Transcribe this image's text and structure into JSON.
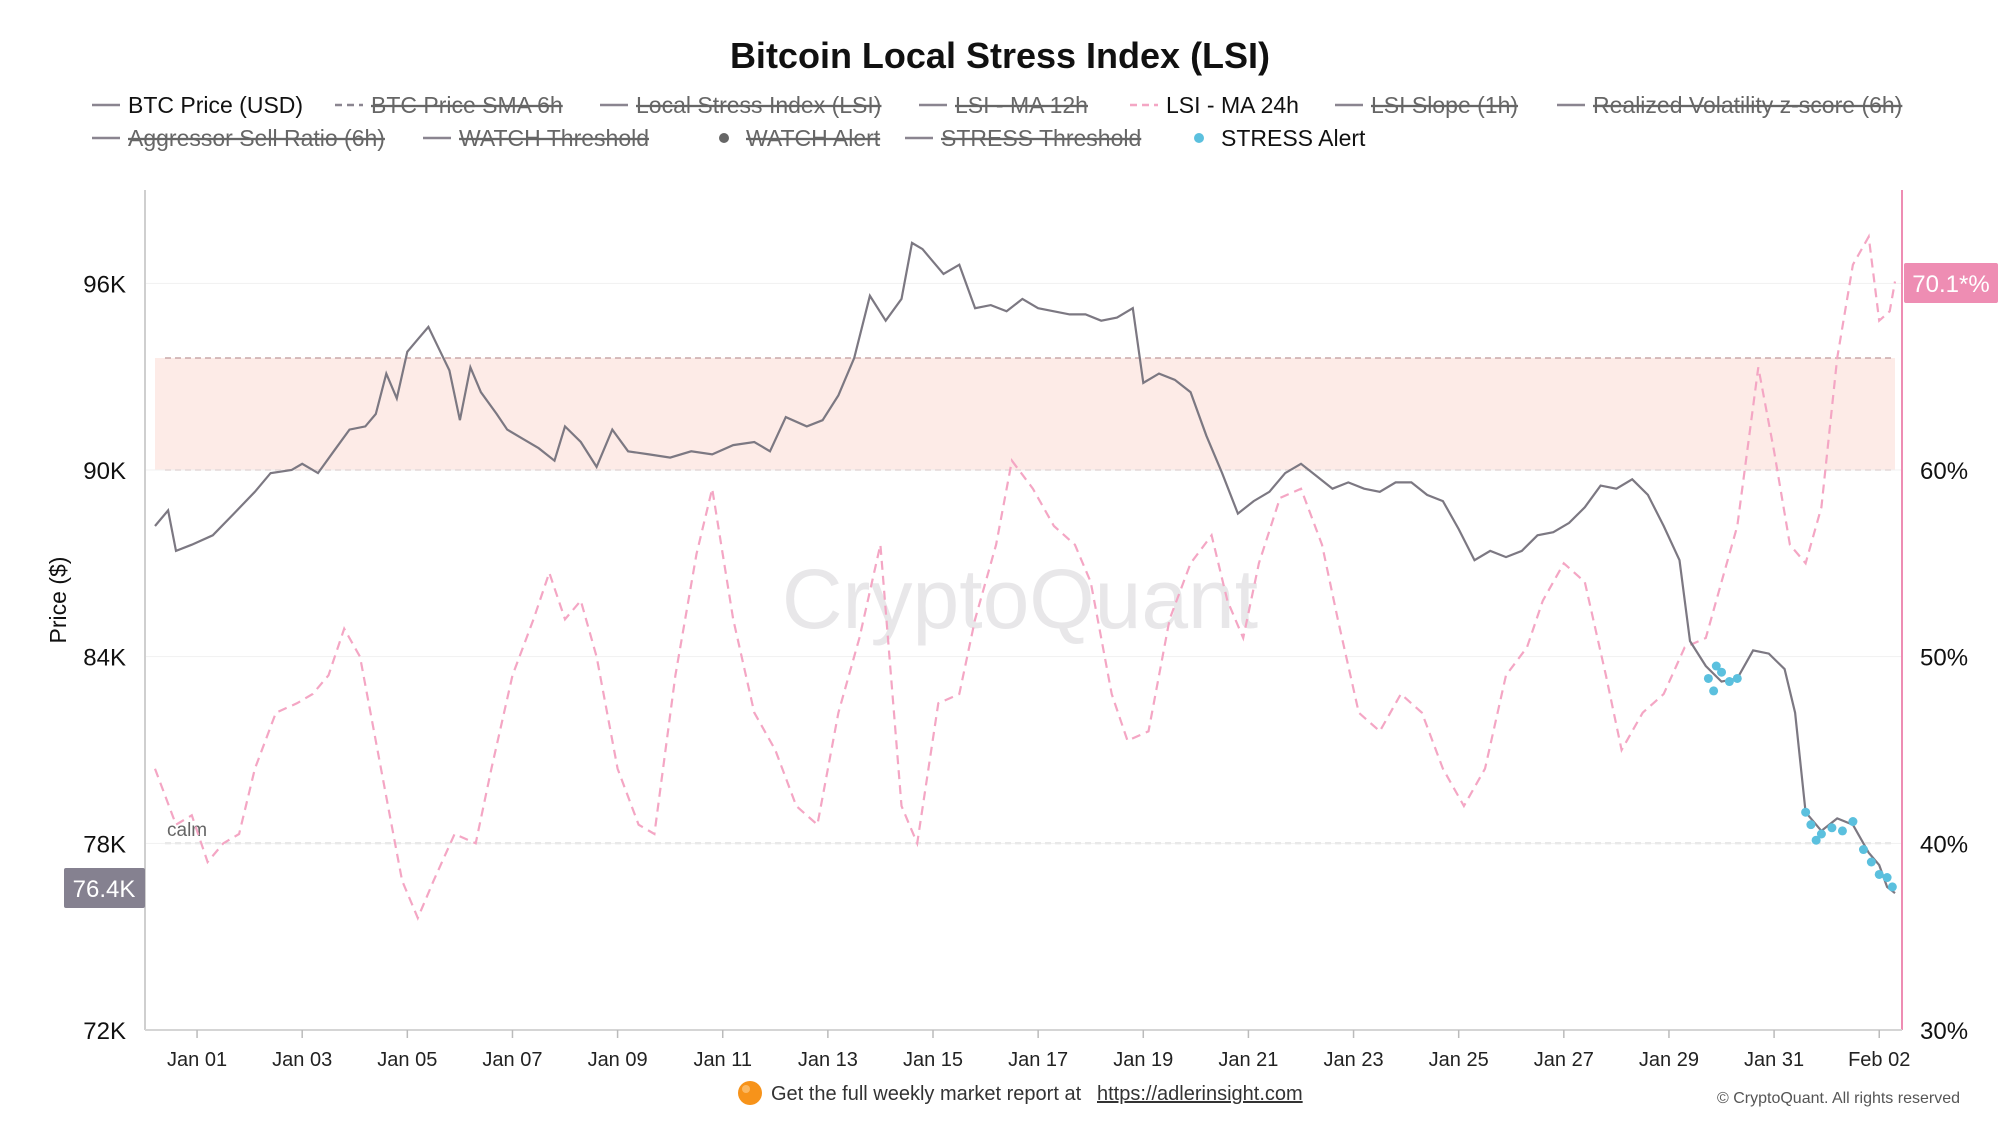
{
  "title": "Bitcoin Local Stress Index (LSI)",
  "legend": [
    {
      "label": "BTC Price (USD)",
      "style": "solid",
      "color": "#8a8590",
      "active": true
    },
    {
      "label": "BTC Price SMA 6h",
      "style": "dashed",
      "color": "#8a8590",
      "active": false
    },
    {
      "label": "Local Stress Index (LSI)",
      "style": "solid",
      "color": "#8a8590",
      "active": false
    },
    {
      "label": "LSI - MA 12h",
      "style": "solid",
      "color": "#8a8590",
      "active": false
    },
    {
      "label": "LSI - MA 24h",
      "style": "dashed",
      "color": "#f4a6c4",
      "active": true
    },
    {
      "label": "LSI Slope (1h)",
      "style": "solid",
      "color": "#8a8590",
      "active": false
    },
    {
      "label": "Realized Volatility z-score (6h)",
      "style": "solid",
      "color": "#8a8590",
      "active": false
    },
    {
      "label": "Aggressor Sell Ratio (6h)",
      "style": "solid",
      "color": "#8a8590",
      "active": false
    },
    {
      "label": "WATCH Threshold",
      "style": "solid",
      "color": "#8a8590",
      "active": false
    },
    {
      "label": "WATCH Alert",
      "style": "dot",
      "color": "#666666",
      "active": false
    },
    {
      "label": "STRESS Threshold",
      "style": "solid",
      "color": "#8a8590",
      "active": false
    },
    {
      "label": "STRESS Alert",
      "style": "dot",
      "color": "#5bc0de",
      "active": true
    }
  ],
  "chart_data": {
    "type": "line",
    "title": "Bitcoin Local Stress Index (LSI)",
    "xlabel": "",
    "ylabel_left": "Price ($)",
    "ylabel_right": "",
    "x_ticks": [
      "Jan 01",
      "Jan 03",
      "Jan 05",
      "Jan 07",
      "Jan 09",
      "Jan 11",
      "Jan 13",
      "Jan 15",
      "Jan 17",
      "Jan 19",
      "Jan 21",
      "Jan 23",
      "Jan 25",
      "Jan 27",
      "Jan 29",
      "Jan 31",
      "Feb 02"
    ],
    "x_range_days": [
      0.2,
      33.3
    ],
    "y_left": {
      "min": 72000,
      "max": 99000,
      "ticks": [
        "72K",
        "78K",
        "84K",
        "90K",
        "96K"
      ],
      "tick_values": [
        72000,
        78000,
        84000,
        90000,
        96000
      ]
    },
    "y_right": {
      "min": 30,
      "max": 75,
      "ticks": [
        "30%",
        "40%",
        "50%",
        "60%"
      ],
      "tick_values": [
        30,
        40,
        50,
        60
      ]
    },
    "stress_band": {
      "from_pct": 60,
      "to_pct": 66
    },
    "calm_line_pct": 40,
    "calm_label": "calm",
    "price_badge": "76.4K",
    "lsi_badge": "70.1*%",
    "series": [
      {
        "name": "BTC Price (USD)",
        "axis": "left",
        "points": [
          [
            0.2,
            88200
          ],
          [
            0.45,
            88700
          ],
          [
            0.6,
            87400
          ],
          [
            0.9,
            87600
          ],
          [
            1.3,
            87900
          ],
          [
            1.7,
            88600
          ],
          [
            2.1,
            89300
          ],
          [
            2.4,
            89900
          ],
          [
            2.8,
            90000
          ],
          [
            3.0,
            90200
          ],
          [
            3.3,
            89900
          ],
          [
            3.6,
            90600
          ],
          [
            3.9,
            91300
          ],
          [
            4.2,
            91400
          ],
          [
            4.4,
            91800
          ],
          [
            4.6,
            93100
          ],
          [
            4.8,
            92300
          ],
          [
            5.0,
            93800
          ],
          [
            5.2,
            94200
          ],
          [
            5.4,
            94600
          ],
          [
            5.6,
            93900
          ],
          [
            5.8,
            93200
          ],
          [
            6.0,
            91600
          ],
          [
            6.2,
            93300
          ],
          [
            6.4,
            92500
          ],
          [
            6.7,
            91800
          ],
          [
            6.9,
            91300
          ],
          [
            7.2,
            91000
          ],
          [
            7.5,
            90700
          ],
          [
            7.8,
            90300
          ],
          [
            8.0,
            91400
          ],
          [
            8.3,
            90900
          ],
          [
            8.6,
            90100
          ],
          [
            8.9,
            91300
          ],
          [
            9.2,
            90600
          ],
          [
            9.6,
            90500
          ],
          [
            10.0,
            90400
          ],
          [
            10.4,
            90600
          ],
          [
            10.8,
            90500
          ],
          [
            11.2,
            90800
          ],
          [
            11.6,
            90900
          ],
          [
            11.9,
            90600
          ],
          [
            12.2,
            91700
          ],
          [
            12.6,
            91400
          ],
          [
            12.9,
            91600
          ],
          [
            13.2,
            92400
          ],
          [
            13.5,
            93600
          ],
          [
            13.8,
            95600
          ],
          [
            14.1,
            94800
          ],
          [
            14.4,
            95500
          ],
          [
            14.6,
            97300
          ],
          [
            14.8,
            97100
          ],
          [
            15.0,
            96700
          ],
          [
            15.2,
            96300
          ],
          [
            15.5,
            96600
          ],
          [
            15.8,
            95200
          ],
          [
            16.1,
            95300
          ],
          [
            16.4,
            95100
          ],
          [
            16.7,
            95500
          ],
          [
            17.0,
            95200
          ],
          [
            17.3,
            95100
          ],
          [
            17.6,
            95000
          ],
          [
            17.9,
            95000
          ],
          [
            18.2,
            94800
          ],
          [
            18.5,
            94900
          ],
          [
            18.8,
            95200
          ],
          [
            19.0,
            92800
          ],
          [
            19.3,
            93100
          ],
          [
            19.6,
            92900
          ],
          [
            19.9,
            92500
          ],
          [
            20.2,
            91100
          ],
          [
            20.5,
            89900
          ],
          [
            20.8,
            88600
          ],
          [
            21.1,
            89000
          ],
          [
            21.4,
            89300
          ],
          [
            21.7,
            89900
          ],
          [
            22.0,
            90200
          ],
          [
            22.3,
            89800
          ],
          [
            22.6,
            89400
          ],
          [
            22.9,
            89600
          ],
          [
            23.2,
            89400
          ],
          [
            23.5,
            89300
          ],
          [
            23.8,
            89600
          ],
          [
            24.1,
            89600
          ],
          [
            24.4,
            89200
          ],
          [
            24.7,
            89000
          ],
          [
            25.0,
            88100
          ],
          [
            25.3,
            87100
          ],
          [
            25.6,
            87400
          ],
          [
            25.9,
            87200
          ],
          [
            26.2,
            87400
          ],
          [
            26.5,
            87900
          ],
          [
            26.8,
            88000
          ],
          [
            27.1,
            88300
          ],
          [
            27.4,
            88800
          ],
          [
            27.7,
            89500
          ],
          [
            28.0,
            89400
          ],
          [
            28.3,
            89700
          ],
          [
            28.6,
            89200
          ],
          [
            28.9,
            88200
          ],
          [
            29.2,
            87100
          ],
          [
            29.4,
            84500
          ],
          [
            29.7,
            83700
          ],
          [
            30.0,
            83200
          ],
          [
            30.3,
            83300
          ],
          [
            30.6,
            84200
          ],
          [
            30.9,
            84100
          ],
          [
            31.2,
            83600
          ],
          [
            31.4,
            82200
          ],
          [
            31.6,
            79000
          ],
          [
            31.9,
            78400
          ],
          [
            32.2,
            78800
          ],
          [
            32.5,
            78600
          ],
          [
            32.8,
            77700
          ],
          [
            33.0,
            77300
          ],
          [
            33.15,
            76600
          ],
          [
            33.3,
            76400
          ]
        ]
      },
      {
        "name": "LSI - MA 24h",
        "axis": "right",
        "points": [
          [
            0.2,
            44
          ],
          [
            0.6,
            41
          ],
          [
            0.9,
            41.5
          ],
          [
            1.2,
            39
          ],
          [
            1.5,
            40
          ],
          [
            1.8,
            40.5
          ],
          [
            2.1,
            44
          ],
          [
            2.5,
            47
          ],
          [
            2.9,
            47.5
          ],
          [
            3.2,
            48
          ],
          [
            3.5,
            49
          ],
          [
            3.8,
            51.5
          ],
          [
            4.1,
            50
          ],
          [
            4.5,
            44
          ],
          [
            4.9,
            38
          ],
          [
            5.2,
            36
          ],
          [
            5.5,
            38
          ],
          [
            5.9,
            40.5
          ],
          [
            6.3,
            40
          ],
          [
            6.6,
            44
          ],
          [
            7.0,
            49
          ],
          [
            7.4,
            52
          ],
          [
            7.7,
            54.5
          ],
          [
            8.0,
            52
          ],
          [
            8.3,
            53
          ],
          [
            8.6,
            50
          ],
          [
            9.0,
            44
          ],
          [
            9.4,
            41
          ],
          [
            9.7,
            40.5
          ],
          [
            10.1,
            49
          ],
          [
            10.5,
            55.5
          ],
          [
            10.8,
            59
          ],
          [
            11.2,
            52
          ],
          [
            11.6,
            47
          ],
          [
            12.0,
            45
          ],
          [
            12.4,
            42
          ],
          [
            12.8,
            41
          ],
          [
            13.2,
            47
          ],
          [
            13.6,
            51
          ],
          [
            14.0,
            56
          ],
          [
            14.4,
            42
          ],
          [
            14.7,
            40
          ],
          [
            15.1,
            47.5
          ],
          [
            15.5,
            48
          ],
          [
            15.8,
            52
          ],
          [
            16.2,
            56
          ],
          [
            16.5,
            60.5
          ],
          [
            16.9,
            59
          ],
          [
            17.3,
            57
          ],
          [
            17.7,
            56
          ],
          [
            18.0,
            54
          ],
          [
            18.4,
            48
          ],
          [
            18.7,
            45.5
          ],
          [
            19.1,
            46
          ],
          [
            19.5,
            52
          ],
          [
            19.9,
            55
          ],
          [
            20.3,
            56.5
          ],
          [
            20.6,
            53
          ],
          [
            20.9,
            51
          ],
          [
            21.2,
            55
          ],
          [
            21.6,
            58.5
          ],
          [
            22.0,
            59
          ],
          [
            22.4,
            56
          ],
          [
            22.7,
            52
          ],
          [
            23.1,
            47
          ],
          [
            23.5,
            46
          ],
          [
            23.9,
            48
          ],
          [
            24.3,
            47
          ],
          [
            24.7,
            44
          ],
          [
            25.1,
            42
          ],
          [
            25.5,
            44
          ],
          [
            25.9,
            49
          ],
          [
            26.3,
            50.5
          ],
          [
            26.6,
            53
          ],
          [
            27.0,
            55
          ],
          [
            27.4,
            54
          ],
          [
            27.8,
            49
          ],
          [
            28.1,
            45
          ],
          [
            28.5,
            47
          ],
          [
            28.9,
            48
          ],
          [
            29.3,
            50.5
          ],
          [
            29.7,
            51
          ],
          [
            30.0,
            54
          ],
          [
            30.3,
            57
          ],
          [
            30.7,
            65.5
          ],
          [
            31.0,
            61
          ],
          [
            31.3,
            56
          ],
          [
            31.6,
            55
          ],
          [
            31.9,
            58
          ],
          [
            32.2,
            66
          ],
          [
            32.5,
            71
          ],
          [
            32.8,
            72.5
          ],
          [
            33.0,
            68
          ],
          [
            33.2,
            68.5
          ],
          [
            33.3,
            70.1
          ]
        ]
      }
    ],
    "stress_alerts": [
      [
        29.75,
        83300
      ],
      [
        29.85,
        82900
      ],
      [
        29.9,
        83700
      ],
      [
        30.0,
        83500
      ],
      [
        30.15,
        83200
      ],
      [
        30.3,
        83300
      ],
      [
        31.6,
        79000
      ],
      [
        31.7,
        78600
      ],
      [
        31.8,
        78100
      ],
      [
        31.9,
        78300
      ],
      [
        32.1,
        78500
      ],
      [
        32.3,
        78400
      ],
      [
        32.5,
        78700
      ],
      [
        32.7,
        77800
      ],
      [
        32.85,
        77400
      ],
      [
        33.0,
        77000
      ],
      [
        33.15,
        76900
      ],
      [
        33.25,
        76600
      ]
    ]
  },
  "watermark": "CryptoQuant",
  "footer": {
    "icon": "orange-circle-icon",
    "text": "Get the full weekly market report at",
    "link": "https://adlerinsight.com",
    "copyright": "© CryptoQuant. All rights reserved"
  },
  "colors": {
    "price": "#7c7882",
    "lsi": "#f4a6c4",
    "alert": "#5bc0de",
    "band": "#fdebe7",
    "badge_price": "#858190",
    "badge_lsi": "#ee8db3",
    "accent": "#f7931a"
  }
}
